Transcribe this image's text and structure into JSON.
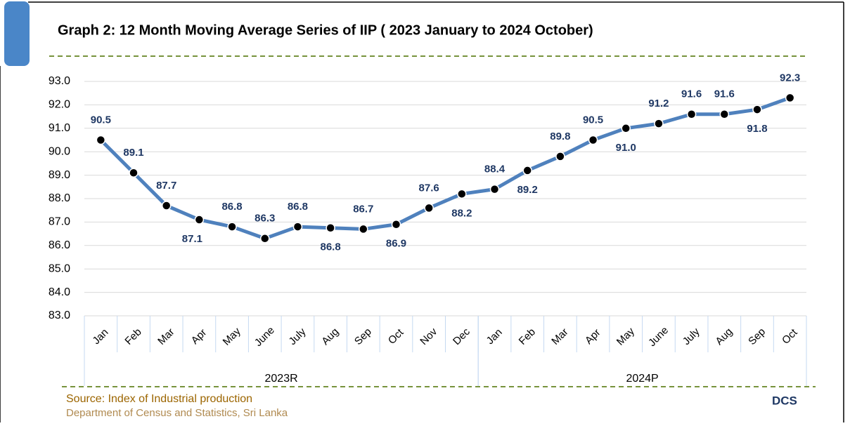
{
  "chart_data": {
    "type": "line",
    "title": "Graph 2: 12 Month Moving Average Series of IIP ( 2023 January to 2024 October)",
    "categories": [
      "Jan",
      "Feb",
      "Mar",
      "Apr",
      "May",
      "June",
      "July",
      "Aug",
      "Sep",
      "Oct",
      "Nov",
      "Dec",
      "Jan",
      "Feb",
      "Mar",
      "Apr",
      "May",
      "June",
      "July",
      "Aug",
      "Sep",
      "Oct"
    ],
    "groups": [
      {
        "name": "2023R",
        "size": 12
      },
      {
        "name": "2024P",
        "size": 10
      }
    ],
    "series": [
      {
        "name": "IIP",
        "color": "#4f81bd",
        "values": [
          90.5,
          89.1,
          87.7,
          87.1,
          86.8,
          86.3,
          86.8,
          86.75,
          86.7,
          86.9,
          87.6,
          88.2,
          88.4,
          89.2,
          89.8,
          90.5,
          91.0,
          91.2,
          91.6,
          91.6,
          91.8,
          92.3
        ],
        "value_labels": [
          "90.5",
          "89.1",
          "87.7",
          "87.1",
          "86.8",
          "86.3",
          "86.8",
          "86.8",
          "86.7",
          "86.9",
          "87.6",
          "88.2",
          "88.4",
          "89.2",
          "89.8",
          "90.5",
          "91.0",
          "91.2",
          "91.6",
          "91.6",
          "91.8",
          "92.3"
        ]
      }
    ],
    "ylim": [
      83,
      93
    ],
    "yticks": [
      {
        "value": 83,
        "label": "83.0"
      },
      {
        "value": 84,
        "label": "84.0"
      },
      {
        "value": 85,
        "label": "85.0"
      },
      {
        "value": 86,
        "label": "86.0"
      },
      {
        "value": 87,
        "label": "87.0"
      },
      {
        "value": 88,
        "label": "88.0"
      },
      {
        "value": 89,
        "label": "89.0"
      },
      {
        "value": 90,
        "label": "90.0"
      },
      {
        "value": 91,
        "label": "91.0"
      },
      {
        "value": 92,
        "label": "92.0"
      },
      {
        "value": 93,
        "label": "93.0"
      }
    ],
    "grid": true,
    "source": "Source: Index of Industrial production",
    "publisher": "Department of Census and Statistics, Sri Lanka",
    "logo": "DCS"
  }
}
